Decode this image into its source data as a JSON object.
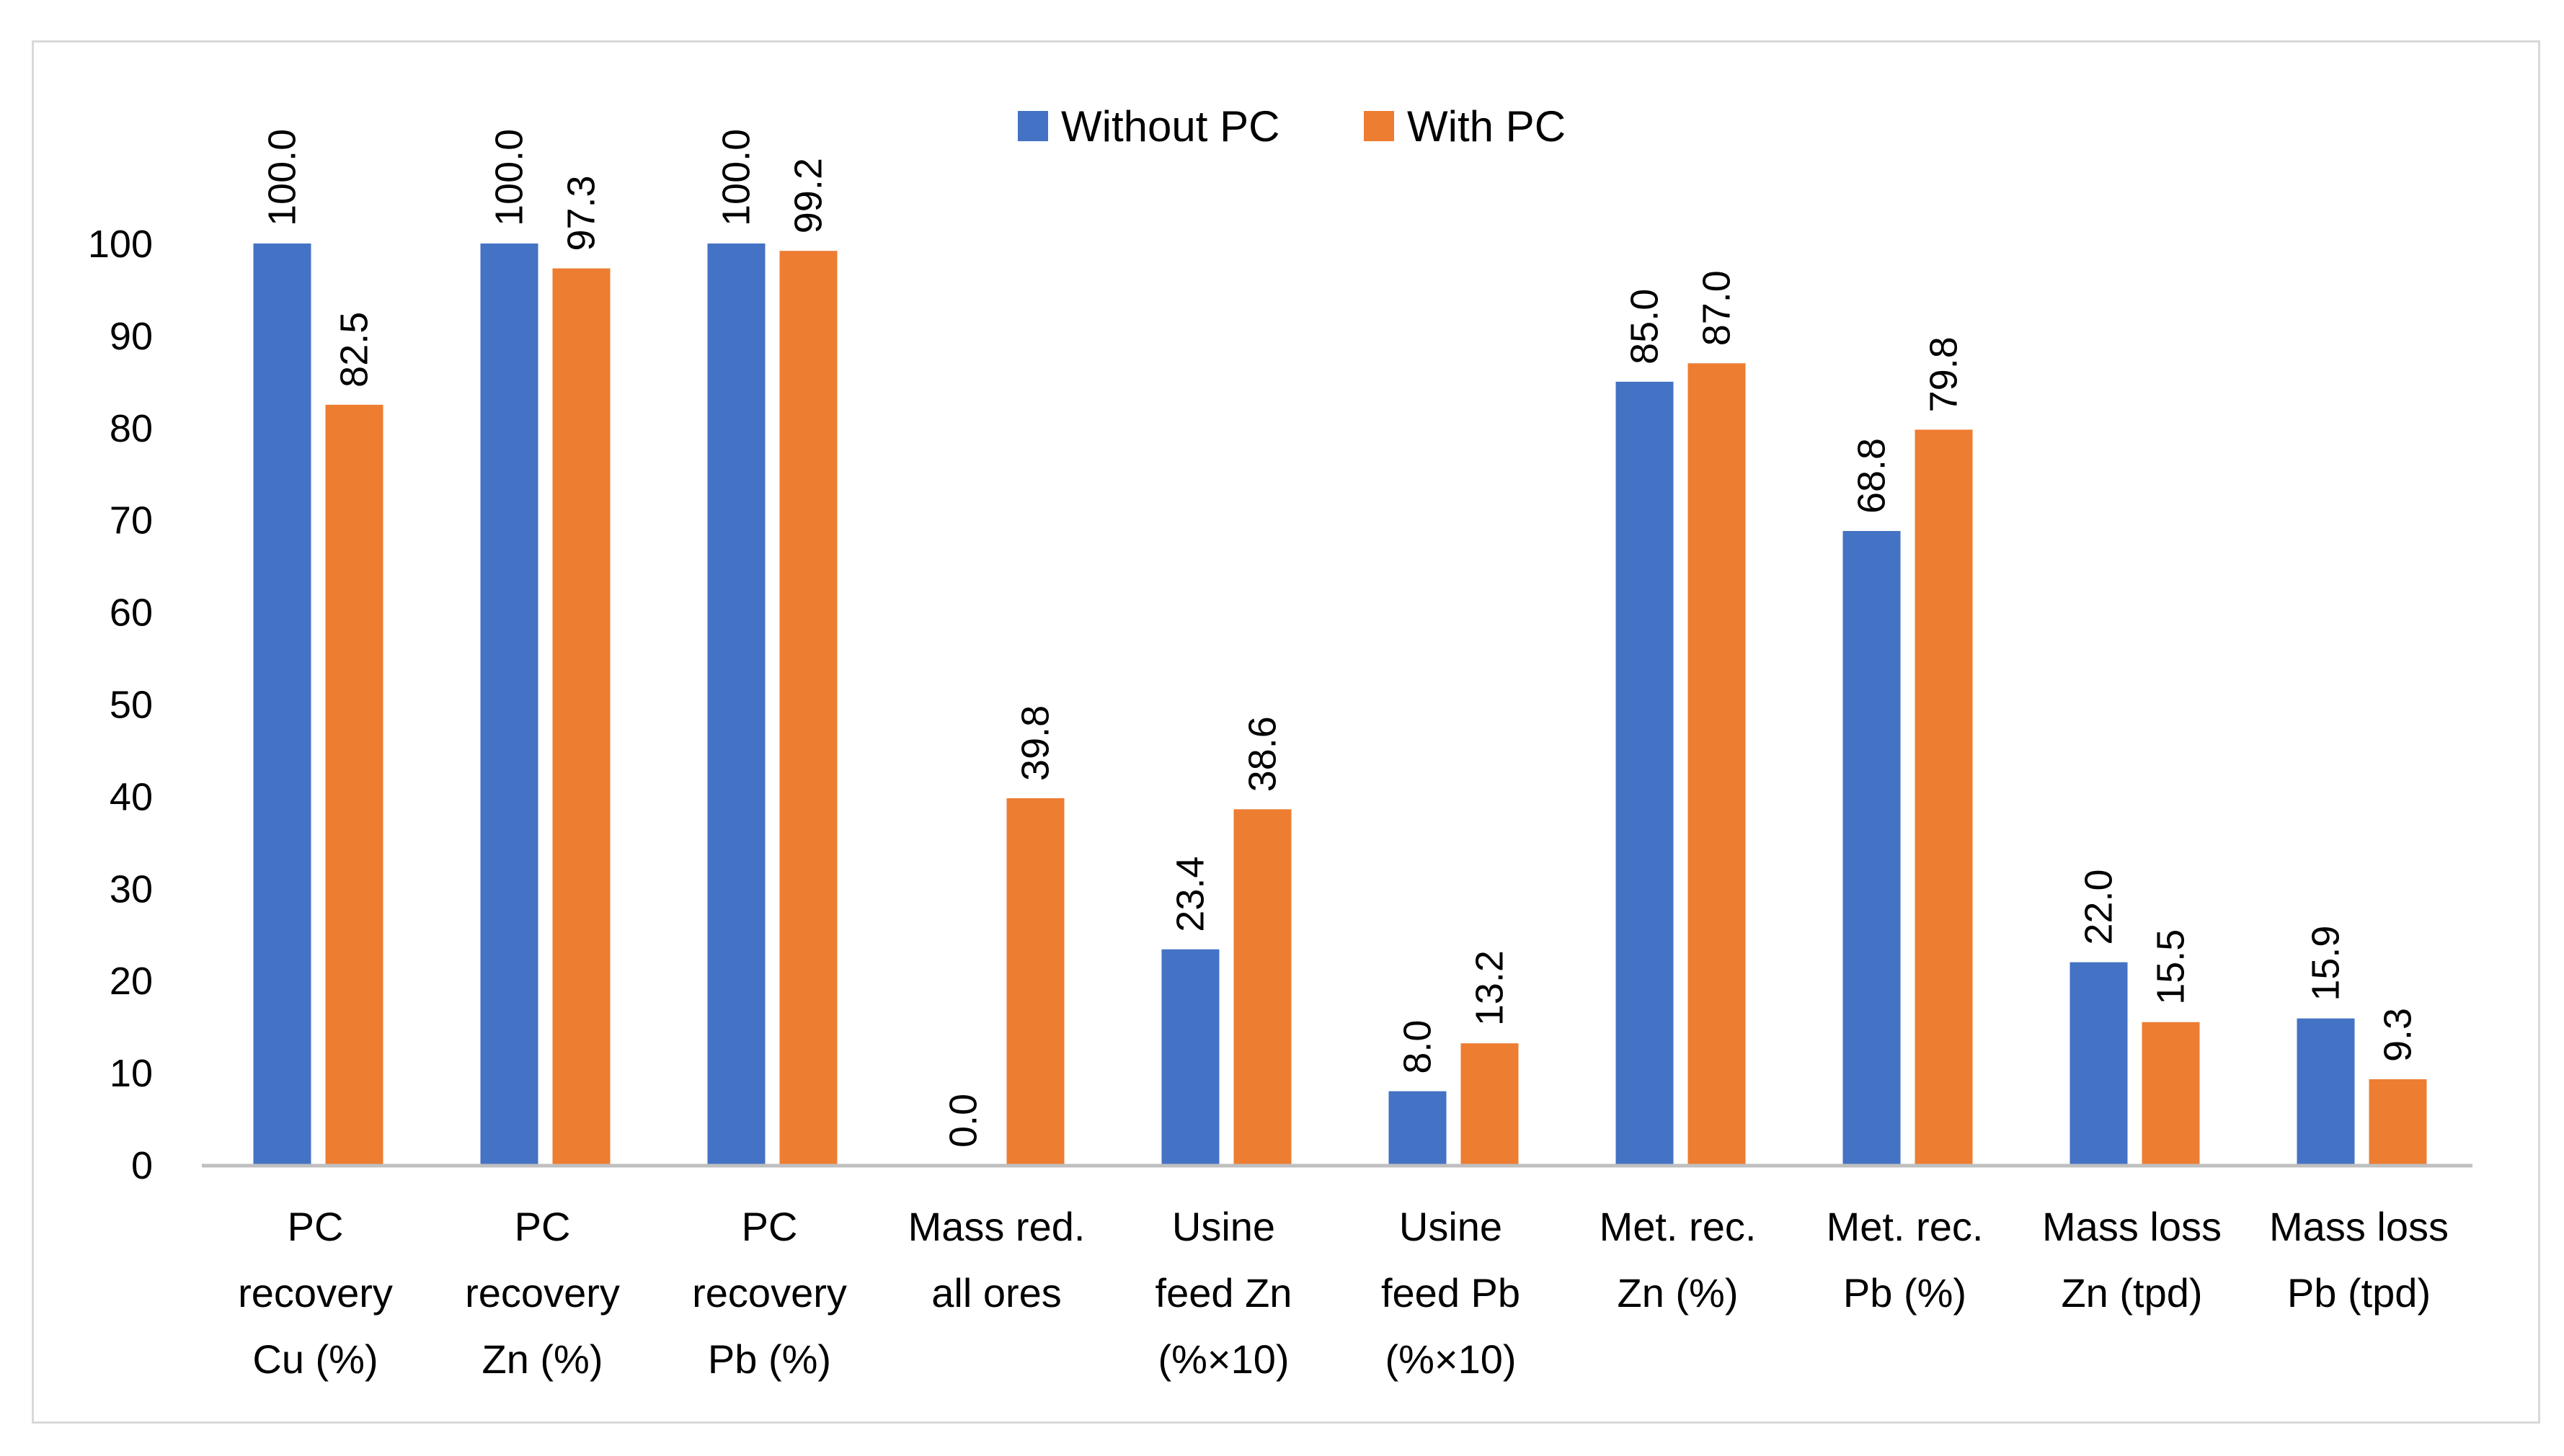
{
  "chart_data": {
    "type": "bar",
    "title": "",
    "xlabel": "",
    "ylabel": "",
    "ylim": [
      0,
      100
    ],
    "yticks": [
      "0",
      "10",
      "20",
      "30",
      "40",
      "50",
      "60",
      "70",
      "80",
      "90",
      "100"
    ],
    "grid": false,
    "legend_position": "top-center",
    "categories": [
      [
        "PC",
        "recovery",
        "Cu (%)"
      ],
      [
        "PC",
        "recovery",
        "Zn (%)"
      ],
      [
        "PC",
        "recovery",
        "Pb (%)"
      ],
      [
        "Mass red.",
        "all ores"
      ],
      [
        "Usine",
        "feed Zn",
        "(%×10)"
      ],
      [
        "Usine",
        "feed Pb",
        "(%×10)"
      ],
      [
        "Met. rec.",
        "Zn (%)"
      ],
      [
        "Met. rec.",
        "Pb (%)"
      ],
      [
        "Mass loss",
        "Zn (tpd)"
      ],
      [
        "Mass loss",
        "Pb (tpd)"
      ]
    ],
    "series": [
      {
        "name": "Without PC",
        "color": "#4472c4",
        "values": [
          100.0,
          100.0,
          100.0,
          0.0,
          23.4,
          8.0,
          85.0,
          68.8,
          22.0,
          15.9
        ],
        "labels": [
          "100.0",
          "100.0",
          "100.0",
          "0.0",
          "23.4",
          "8.0",
          "85.0",
          "68.8",
          "22.0",
          "15.9"
        ]
      },
      {
        "name": "With PC",
        "color": "#ed7d31",
        "values": [
          82.5,
          97.3,
          99.2,
          39.8,
          38.6,
          13.2,
          87.0,
          79.8,
          15.5,
          9.3
        ],
        "labels": [
          "82.5",
          "97.3",
          "99.2",
          "39.8",
          "38.6",
          "13.2",
          "87.0",
          "79.8",
          "15.5",
          "9.3"
        ]
      }
    ]
  }
}
